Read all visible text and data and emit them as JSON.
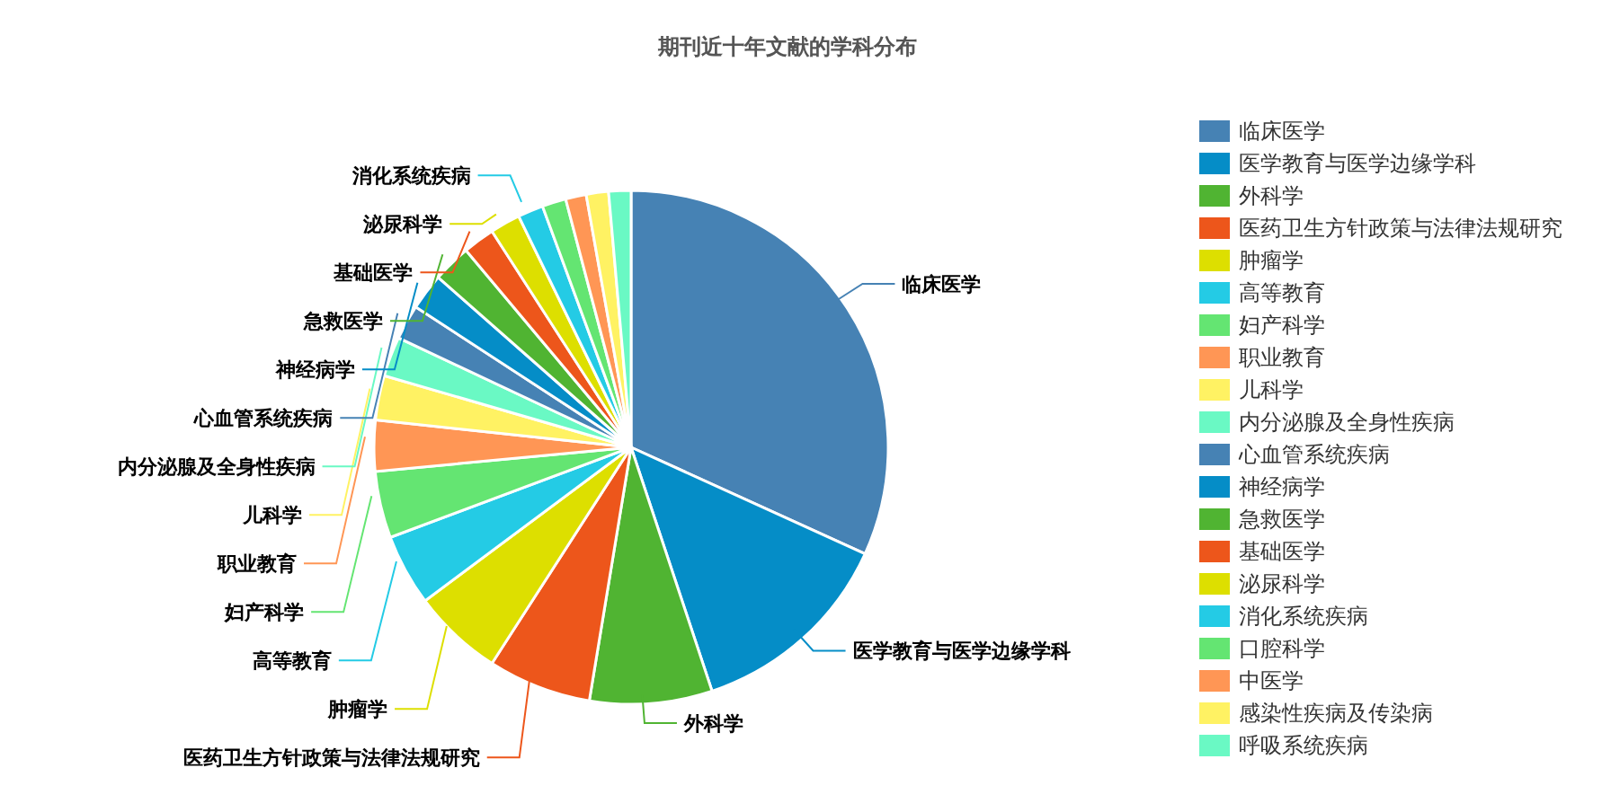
{
  "chart_data": {
    "type": "pie",
    "title": "期刊近十年文献的学科分布",
    "categories": [
      "临床医学",
      "医学教育与医学边缘学科",
      "外科学",
      "医药卫生方针政策与法律法规研究",
      "肿瘤学",
      "高等教育",
      "妇产科学",
      "职业教育",
      "儿科学",
      "内分泌腺及全身性疾病",
      "心血管系统疾病",
      "神经病学",
      "急救医学",
      "基础医学",
      "泌尿科学",
      "消化系统疾病",
      "口腔科学",
      "中医学",
      "感染性疾病及传染病",
      "呼吸系统疾病"
    ],
    "values": [
      31.8,
      13.1,
      7.7,
      6.5,
      5.7,
      4.5,
      4.2,
      3.2,
      2.8,
      2.5,
      2.2,
      2.3,
      2.4,
      2.0,
      1.9,
      1.6,
      1.5,
      1.3,
      1.4,
      1.4
    ],
    "colors": [
      "#4682b4",
      "#058dc7",
      "#50b432",
      "#ed561b",
      "#dddf00",
      "#24cbe5",
      "#64e572",
      "#ff9655",
      "#fff263",
      "#6af9c4",
      "#4682b4",
      "#058dc7",
      "#50b432",
      "#ed561b",
      "#dddf00",
      "#24cbe5",
      "#64e572",
      "#ff9655",
      "#fff263",
      "#6af9c4"
    ],
    "legend": "right"
  }
}
